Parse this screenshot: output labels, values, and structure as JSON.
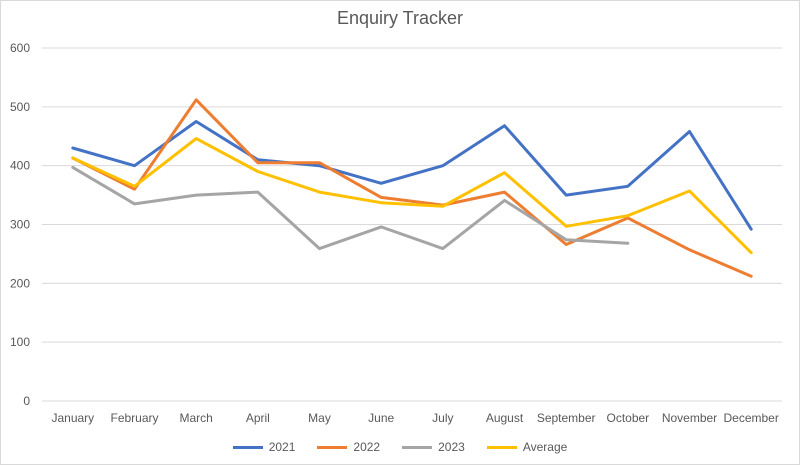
{
  "chart_data": {
    "type": "line",
    "title": "Enquiry Tracker",
    "xlabel": "",
    "ylabel": "",
    "ylim": [
      0,
      600
    ],
    "yticks": [
      0,
      100,
      200,
      300,
      400,
      500,
      600
    ],
    "grid": true,
    "legend_position": "bottom",
    "categories": [
      "January",
      "February",
      "March",
      "April",
      "May",
      "June",
      "July",
      "August",
      "September",
      "October",
      "November",
      "December"
    ],
    "series": [
      {
        "name": "2021",
        "color": "#4472C4",
        "values": [
          430,
          400,
          475,
          410,
          400,
          370,
          400,
          468,
          350,
          365,
          458,
          292
        ]
      },
      {
        "name": "2022",
        "color": "#ED7D31",
        "values": [
          413,
          360,
          512,
          405,
          405,
          346,
          333,
          355,
          266,
          311,
          257,
          212
        ]
      },
      {
        "name": "2023",
        "color": "#A5A5A5",
        "values": [
          397,
          335,
          350,
          355,
          259,
          296,
          259,
          341,
          274,
          268,
          null,
          null
        ]
      },
      {
        "name": "Average",
        "color": "#FFC000",
        "values": [
          413,
          365,
          446,
          390,
          355,
          337,
          331,
          388,
          297,
          315,
          357,
          252
        ]
      }
    ]
  }
}
